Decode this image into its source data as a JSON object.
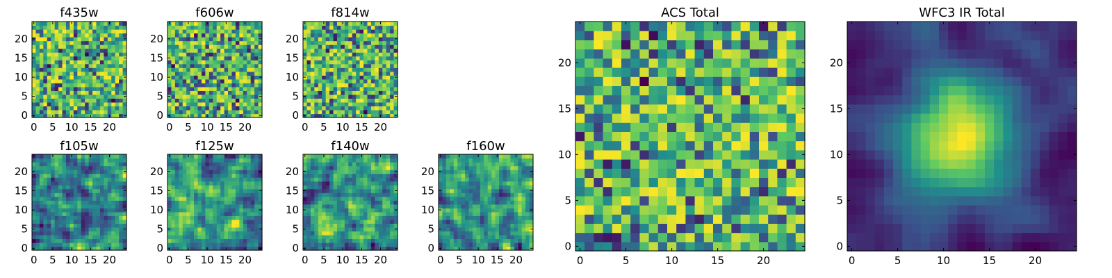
{
  "figure": {
    "background": "#ffffff",
    "colormap": "viridis",
    "colormap_stops": [
      "#440154",
      "#3b528b",
      "#21918c",
      "#5ec962",
      "#fde725"
    ]
  },
  "chart_data": [
    {
      "type": "heatmap",
      "title": "f435w",
      "grid_size": 25,
      "xticks": [
        0,
        5,
        10,
        15,
        20
      ],
      "yticks": [
        0,
        5,
        10,
        15,
        20
      ],
      "xlim": [
        0,
        24
      ],
      "ylim": [
        0,
        24
      ],
      "smooth": 0,
      "seed": 11,
      "blob": 0
    },
    {
      "type": "heatmap",
      "title": "f606w",
      "grid_size": 25,
      "xticks": [
        0,
        5,
        10,
        15,
        20
      ],
      "yticks": [
        0,
        5,
        10,
        15,
        20
      ],
      "xlim": [
        0,
        24
      ],
      "ylim": [
        0,
        24
      ],
      "smooth": 0,
      "seed": 23,
      "blob": 0
    },
    {
      "type": "heatmap",
      "title": "f814w",
      "grid_size": 25,
      "xticks": [
        0,
        5,
        10,
        15,
        20
      ],
      "yticks": [
        0,
        5,
        10,
        15,
        20
      ],
      "xlim": [
        0,
        24
      ],
      "ylim": [
        0,
        24
      ],
      "smooth": 0,
      "seed": 37,
      "blob": 0
    },
    {
      "type": "heatmap",
      "title": "f105w",
      "grid_size": 25,
      "xticks": [
        0,
        5,
        10,
        15,
        20
      ],
      "yticks": [
        0,
        5,
        10,
        15,
        20
      ],
      "xlim": [
        0,
        24
      ],
      "ylim": [
        0,
        24
      ],
      "smooth": 1,
      "seed": 41,
      "blob": 0
    },
    {
      "type": "heatmap",
      "title": "f125w",
      "grid_size": 25,
      "xticks": [
        0,
        5,
        10,
        15,
        20
      ],
      "yticks": [
        0,
        5,
        10,
        15,
        20
      ],
      "xlim": [
        0,
        24
      ],
      "ylim": [
        0,
        24
      ],
      "smooth": 1,
      "seed": 53,
      "blob": 0
    },
    {
      "type": "heatmap",
      "title": "f140w",
      "grid_size": 25,
      "xticks": [
        0,
        5,
        10,
        15,
        20
      ],
      "yticks": [
        0,
        5,
        10,
        15,
        20
      ],
      "xlim": [
        0,
        24
      ],
      "ylim": [
        0,
        24
      ],
      "smooth": 1,
      "seed": 67,
      "blob": 0
    },
    {
      "type": "heatmap",
      "title": "f160w",
      "grid_size": 25,
      "xticks": [
        0,
        5,
        10,
        15,
        20
      ],
      "yticks": [
        0,
        5,
        10,
        15,
        20
      ],
      "xlim": [
        0,
        24
      ],
      "ylim": [
        0,
        24
      ],
      "smooth": 1,
      "seed": 79,
      "blob": 0
    },
    {
      "type": "heatmap",
      "title": "ACS Total",
      "grid_size": 25,
      "xticks": [
        0,
        5,
        10,
        15,
        20
      ],
      "yticks": [
        0,
        5,
        10,
        15,
        20
      ],
      "xlim": [
        0,
        24
      ],
      "ylim": [
        0,
        24
      ],
      "smooth": 0,
      "seed": 97,
      "blob": 0
    },
    {
      "type": "heatmap",
      "title": "WFC3 IR Total",
      "grid_size": 25,
      "xticks": [
        0,
        5,
        10,
        15,
        20
      ],
      "yticks": [
        0,
        5,
        10,
        15,
        20
      ],
      "xlim": [
        0,
        24
      ],
      "ylim": [
        0,
        24
      ],
      "smooth": 2,
      "seed": 101,
      "blob": 1
    }
  ]
}
